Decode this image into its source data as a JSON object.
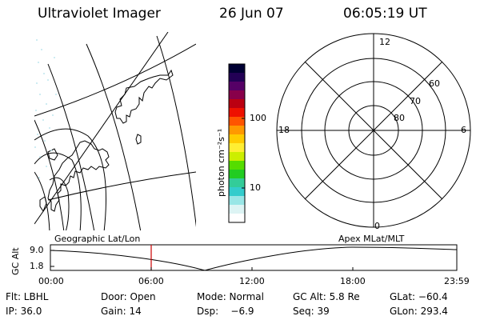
{
  "header": {
    "instrument": "Ultraviolet Imager",
    "date": "26 Jun 07",
    "time": "06:05:19 UT"
  },
  "colorbar": {
    "unit_label": "photon cm⁻²s⁻¹",
    "tick_labels": [
      "100",
      "10"
    ],
    "colors": [
      "#000033",
      "#220055",
      "#550066",
      "#88004a",
      "#bb0011",
      "#ee1100",
      "#ff5500",
      "#ff9900",
      "#ffcc00",
      "#ffee33",
      "#ccee00",
      "#55dd00",
      "#22cc22",
      "#33cc99",
      "#33cccc",
      "#99e6e6",
      "#ddf4f4",
      "#ffffff"
    ]
  },
  "polar_plot": {
    "mlt_labels": {
      "top": "12",
      "left": "18",
      "right": "6",
      "bottom": "0"
    },
    "lat_labels": [
      "60",
      "70",
      "80"
    ]
  },
  "timeline": {
    "left_title": "Geographic Lat/Lon",
    "right_title": "Apex MLat/MLT",
    "axis_label": "GC Alt",
    "y_max": "9.0",
    "y_min": "1.8",
    "x_ticks": [
      "00:00",
      "06:00",
      "12:00",
      "18:00",
      "23:59"
    ],
    "marker_time": "06:05",
    "marker_color": "#cc0000"
  },
  "info": {
    "row1": {
      "flt": "Flt: LBHL",
      "door": "Door: Open",
      "mode": "Mode: Normal",
      "gc_alt": "GC Alt: 5.8 Re",
      "glat": "GLat: −60.4"
    },
    "row2": {
      "ip": "IP: 36.0",
      "gain": "Gain: 14",
      "dsp": "Dsp:    −6.9",
      "seq": "Seq: 39",
      "glon": "GLon: 293.4"
    }
  }
}
